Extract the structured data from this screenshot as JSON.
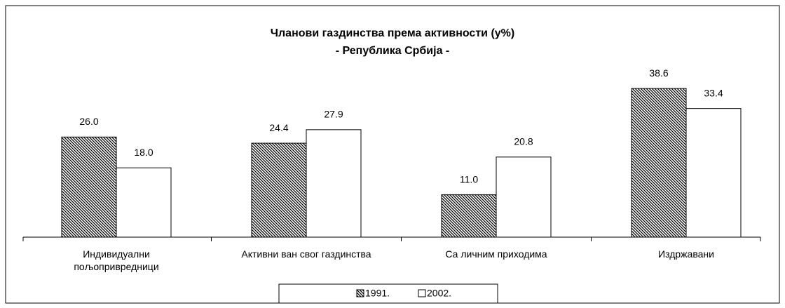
{
  "chart_data": {
    "type": "bar",
    "title": "Чланови газдинства према активности (у%)",
    "subtitle": "- Република Србија -",
    "categories": [
      "Индивидуални\nпољопривредници",
      "Активни ван свог газдинства",
      "Са личним приходима",
      "Издржавани"
    ],
    "series": [
      {
        "name": "1991.",
        "color": "#000000",
        "pattern": "diagonal",
        "values": [
          26.0,
          24.4,
          11.0,
          38.6
        ],
        "value_labels": [
          "26.0",
          "24.4",
          "11.0",
          "38.6"
        ]
      },
      {
        "name": "2002.",
        "color": "#ffffff",
        "values": [
          18.0,
          27.9,
          20.8,
          33.4
        ],
        "value_labels": [
          "18.0",
          "27.9",
          "20.8",
          "33.4"
        ]
      }
    ],
    "ylim": [
      0,
      45
    ],
    "grid": false,
    "legend": "bottom"
  }
}
